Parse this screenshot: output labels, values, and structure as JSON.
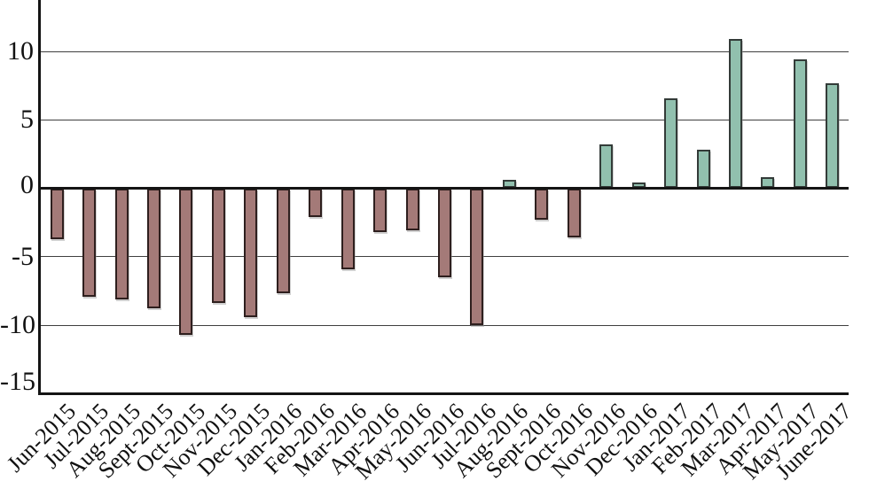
{
  "chart_data": {
    "type": "bar",
    "title": "",
    "xlabel": "",
    "ylabel": "",
    "categories": [
      "Jun-2015",
      "Jul-2015",
      "Aug-2015",
      "Sept-2015",
      "Oct-2015",
      "Nov-2015",
      "Dec-2015",
      "Jan-2016",
      "Feb-2016",
      "Mar-2016",
      "Apr-2016",
      "May-2016",
      "Jun-2016",
      "Jul-2016",
      "Aug-2016",
      "Sept-2016",
      "Oct-2016",
      "Nov-2016",
      "Dec-2016",
      "Jan-2017",
      "Feb-2017",
      "Mar-2017",
      "Apr-2017",
      "May-2017",
      "June-2017"
    ],
    "values": [
      -3.7,
      -7.9,
      -8.1,
      -8.8,
      -10.7,
      -8.4,
      -9.4,
      -7.7,
      -2.1,
      -5.9,
      -3.2,
      -3.1,
      -6.5,
      -10.0,
      0.6,
      -2.3,
      -3.6,
      3.2,
      0.4,
      6.6,
      2.8,
      10.9,
      0.8,
      9.4,
      7.7
    ],
    "yticks": [
      10,
      5,
      0,
      -5,
      -10,
      -15
    ],
    "ytick_labels": [
      "10",
      "5",
      "0",
      "-5",
      "-10",
      "-15"
    ],
    "ylim": [
      -15,
      13.8
    ],
    "grid": true,
    "legend_position": "none",
    "bar_color_rule": "negative values maroon, positive values teal",
    "colors": {
      "positive_fill": "#91c0ae",
      "positive_border": "#333b38",
      "negative_fill": "#a47a78",
      "negative_border": "#2e1f1e",
      "axis": "#141414",
      "gridline": "#3f3f3f",
      "text": "#111111",
      "background": "#ffffff"
    }
  }
}
